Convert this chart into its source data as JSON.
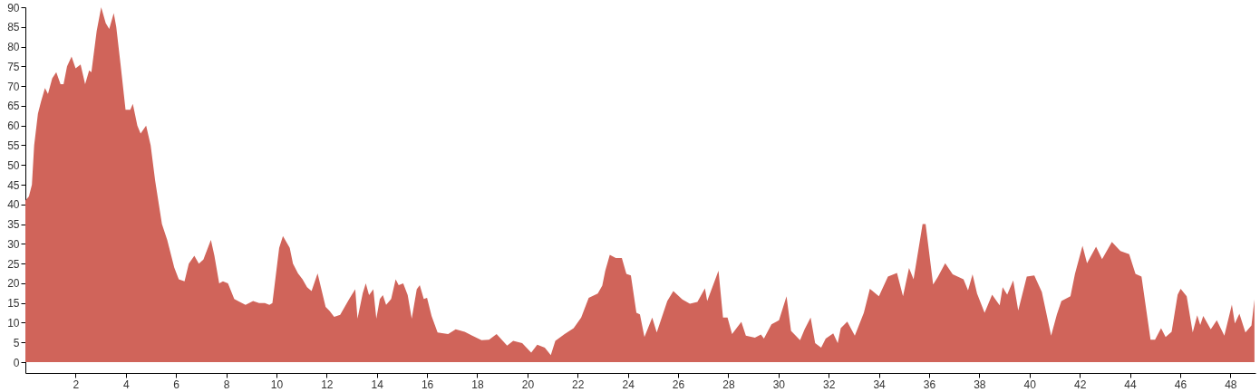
{
  "chart_data": {
    "type": "area",
    "color": "#d0645a",
    "x": [
      0,
      0.14,
      0.26,
      0.35,
      0.5,
      0.62,
      0.78,
      0.9,
      1.07,
      1.23,
      1.4,
      1.52,
      1.66,
      1.84,
      2.0,
      2.2,
      2.38,
      2.54,
      2.63,
      2.84,
      3.02,
      3.2,
      3.34,
      3.52,
      3.62,
      3.8,
      3.99,
      4.18,
      4.28,
      4.46,
      4.59,
      4.81,
      4.99,
      5.17,
      5.44,
      5.65,
      5.93,
      6.11,
      6.34,
      6.51,
      6.73,
      6.91,
      7.09,
      7.39,
      7.53,
      7.72,
      7.87,
      8.07,
      8.32,
      8.47,
      8.77,
      9.07,
      9.31,
      9.54,
      9.72,
      9.84,
      10.11,
      10.26,
      10.53,
      10.66,
      10.86,
      11.04,
      11.22,
      11.4,
      11.64,
      11.96,
      12.12,
      12.3,
      12.54,
      12.9,
      13.14,
      13.23,
      13.44,
      13.56,
      13.69,
      13.86,
      13.98,
      14.12,
      14.24,
      14.37,
      14.57,
      14.75,
      14.87,
      15.05,
      15.23,
      15.39,
      15.59,
      15.71,
      15.87,
      16.0,
      16.18,
      16.42,
      16.84,
      17.14,
      17.5,
      17.8,
      18.17,
      18.47,
      18.77,
      19.19,
      19.43,
      19.79,
      20.15,
      20.39,
      20.69,
      20.93,
      21.11,
      21.48,
      21.84,
      22.14,
      22.44,
      22.8,
      22.98,
      23.1,
      23.28,
      23.52,
      23.76,
      23.94,
      24.12,
      24.34,
      24.48,
      24.66,
      24.97,
      25.15,
      25.57,
      25.81,
      26.17,
      26.47,
      26.77,
      27.07,
      27.16,
      27.61,
      27.79,
      27.97,
      28.15,
      28.52,
      28.7,
      29.06,
      29.3,
      29.42,
      29.72,
      30.02,
      30.32,
      30.5,
      30.86,
      31.04,
      31.28,
      31.46,
      31.7,
      31.88,
      32.18,
      32.36,
      32.48,
      32.74,
      33.04,
      33.4,
      33.64,
      34.0,
      34.36,
      34.72,
      34.96,
      35.2,
      35.38,
      35.74,
      35.86,
      36.16,
      36.34,
      36.64,
      36.94,
      37.37,
      37.55,
      37.73,
      37.91,
      38.21,
      38.51,
      38.81,
      38.93,
      39.11,
      39.35,
      39.55,
      39.89,
      40.19,
      40.49,
      40.86,
      41.09,
      41.27,
      41.63,
      41.81,
      42.11,
      42.29,
      42.65,
      42.89,
      43.28,
      43.62,
      43.97,
      44.22,
      44.46,
      44.82,
      45.0,
      45.24,
      45.42,
      45.66,
      45.9,
      46.02,
      46.26,
      46.5,
      46.68,
      46.8,
      46.92,
      47.22,
      47.46,
      47.76,
      48.06,
      48.18,
      48.36,
      48.6,
      48.84,
      48.96
    ],
    "values": [
      41,
      42,
      45,
      55,
      63,
      66,
      69.5,
      68,
      72,
      73.5,
      70.5,
      70.5,
      75,
      77.5,
      74.5,
      75.5,
      70.5,
      74,
      73.5,
      84,
      90,
      86,
      84.5,
      88.5,
      85,
      75,
      64,
      64,
      65.5,
      60,
      58,
      60,
      55,
      46,
      35,
      31,
      24,
      21,
      20.5,
      25,
      27,
      25,
      26,
      31,
      27,
      20,
      20.5,
      20,
      16,
      15.5,
      14.5,
      15.5,
      15,
      15,
      14.5,
      15,
      29,
      32,
      29,
      25,
      22.5,
      21,
      19,
      18,
      22.5,
      14,
      13,
      11.5,
      12,
      16,
      18.5,
      11,
      17.5,
      20,
      17,
      18.5,
      11,
      16,
      17,
      14.5,
      16,
      21,
      19.5,
      20,
      17,
      11,
      18.5,
      19.5,
      16,
      16.3,
      11.7,
      7.5,
      7.1,
      8.3,
      7.7,
      6.7,
      5.6,
      5.7,
      7.1,
      4.2,
      5.4,
      4.8,
      2.4,
      4.4,
      3.7,
      1.8,
      5.4,
      7.1,
      8.6,
      11.3,
      16.3,
      17.4,
      19.4,
      23.2,
      27.2,
      26.4,
      26.4,
      22.4,
      22,
      12.5,
      12.1,
      6.4,
      11.3,
      7.5,
      15.5,
      18,
      15.9,
      14.8,
      15.3,
      18.7,
      15.5,
      23.2,
      11.3,
      11.3,
      7.1,
      10.2,
      6.7,
      6.2,
      7,
      6,
      9.6,
      10.6,
      16.7,
      7.9,
      5.6,
      8.3,
      11.3,
      4.8,
      3.7,
      6,
      7.3,
      4.8,
      8.6,
      10.3,
      6.7,
      12.5,
      18.6,
      16.7,
      21.7,
      22.6,
      16.7,
      23.9,
      21,
      35,
      35,
      19.7,
      21.5,
      25.1,
      22.3,
      21,
      18.2,
      22.3,
      17.4,
      12.5,
      17.1,
      14.4,
      19,
      17.1,
      20.7,
      13.1,
      21.7,
      22,
      17.8,
      6.7,
      12.1,
      15.5,
      16.7,
      22.4,
      29.5,
      25.1,
      29.3,
      26.1,
      30.5,
      28.2,
      27.4,
      22.4,
      21.7,
      5.7,
      5.7,
      8.6,
      6.4,
      7.7,
      17.1,
      18.6,
      16.7,
      7.5,
      11.9,
      9.4,
      11.7,
      8.3,
      10.6,
      6.7,
      14.6,
      9.8,
      12.3,
      7.5,
      9.3,
      15.9
    ],
    "xlim": [
      0,
      49
    ],
    "ylim": [
      -2.75,
      90
    ],
    "xticks": [
      2,
      4,
      6,
      8,
      10,
      12,
      14,
      16,
      18,
      20,
      22,
      24,
      26,
      28,
      30,
      32,
      34,
      36,
      38,
      40,
      42,
      44,
      46,
      48
    ],
    "yticks": [
      0,
      5,
      10,
      15,
      20,
      25,
      30,
      35,
      40,
      45,
      50,
      55,
      60,
      65,
      70,
      75,
      80,
      85,
      90
    ],
    "grid": false
  }
}
